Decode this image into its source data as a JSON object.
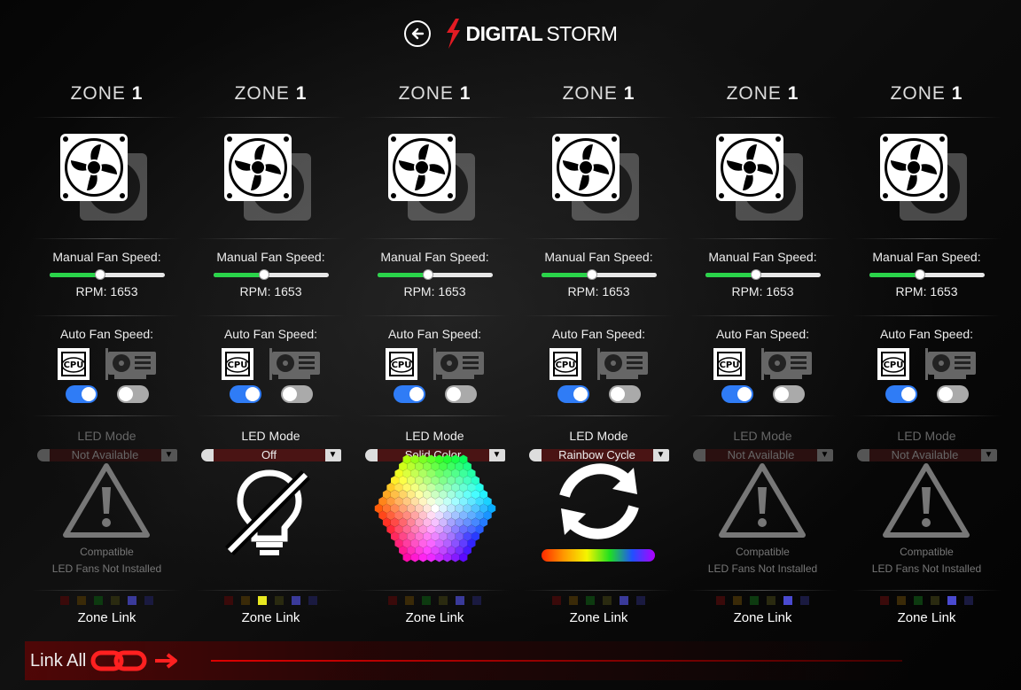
{
  "header": {
    "logo_part1": "DIGITAL",
    "logo_part2": "STORM"
  },
  "zones": [
    {
      "title": "ZONE",
      "num": "1",
      "manual_label": "Manual Fan Speed:",
      "rpm": "RPM: 1653",
      "speed_fraction": 0.44,
      "auto_label": "Auto Fan Speed:",
      "cpu_on": true,
      "gpu_on": false,
      "led_label": "LED Mode",
      "led_value": "Not Available",
      "led_enabled": false,
      "compat1": "Compatible",
      "compat2": "LED Fans Not Installed",
      "zone_link": "Zone Link"
    },
    {
      "title": "ZONE",
      "num": "1",
      "manual_label": "Manual Fan Speed:",
      "rpm": "RPM: 1653",
      "speed_fraction": 0.44,
      "auto_label": "Auto Fan Speed:",
      "cpu_on": true,
      "gpu_on": false,
      "led_label": "LED Mode",
      "led_value": "Off",
      "led_enabled": true,
      "compat1": "",
      "compat2": "",
      "zone_link": "Zone Link"
    },
    {
      "title": "ZONE",
      "num": "1",
      "manual_label": "Manual Fan Speed:",
      "rpm": "RPM: 1653",
      "speed_fraction": 0.44,
      "auto_label": "Auto Fan Speed:",
      "cpu_on": true,
      "gpu_on": false,
      "led_label": "LED Mode",
      "led_value": "Solid Color",
      "led_enabled": true,
      "compat1": "",
      "compat2": "",
      "zone_link": "Zone Link"
    },
    {
      "title": "ZONE",
      "num": "1",
      "manual_label": "Manual Fan Speed:",
      "rpm": "RPM: 1653",
      "speed_fraction": 0.44,
      "auto_label": "Auto Fan Speed:",
      "cpu_on": true,
      "gpu_on": false,
      "led_label": "LED Mode",
      "led_value": "Rainbow Cycle",
      "led_enabled": true,
      "compat1": "",
      "compat2": "",
      "zone_link": "Zone Link"
    },
    {
      "title": "ZONE",
      "num": "1",
      "manual_label": "Manual Fan Speed:",
      "rpm": "RPM: 1653",
      "speed_fraction": 0.44,
      "auto_label": "Auto Fan Speed:",
      "cpu_on": true,
      "gpu_on": false,
      "led_label": "LED Mode",
      "led_value": "Not Available",
      "led_enabled": false,
      "compat1": "Compatible",
      "compat2": "LED Fans Not Installed",
      "zone_link": "Zone Link"
    },
    {
      "title": "ZONE",
      "num": "1",
      "manual_label": "Manual Fan Speed:",
      "rpm": "RPM: 1653",
      "speed_fraction": 0.44,
      "auto_label": "Auto Fan Speed:",
      "cpu_on": true,
      "gpu_on": false,
      "led_label": "LED Mode",
      "led_value": "Not Available",
      "led_enabled": false,
      "compat1": "Compatible",
      "compat2": "LED Fans Not Installed",
      "zone_link": "Zone Link"
    }
  ],
  "swatch_colors": [
    [
      "#3a0a0a",
      "#3a2a08",
      "#0d3a10",
      "#2a2a10",
      "#3a3a9a",
      "#1a1a40"
    ],
    [
      "#3a0a0a",
      "#3a2a08",
      "#e8e820",
      "#2a2a10",
      "#3a3a9a",
      "#1a1a40"
    ],
    [
      "#3a0a0a",
      "#3a2a08",
      "#0d3a10",
      "#2a2a10",
      "#3a3a9a",
      "#1a1a40"
    ],
    [
      "#3a0a0a",
      "#3a2a08",
      "#0d3a10",
      "#2a2a10",
      "#3a3a9a",
      "#1a1a40"
    ],
    [
      "#3a0a0a",
      "#3a2a08",
      "#0d3a10",
      "#2a2a10",
      "#4a4ad0",
      "#1a1a40"
    ],
    [
      "#3a0a0a",
      "#3a2a08",
      "#0d3a10",
      "#2a2a10",
      "#4a4ad0",
      "#1a1a40"
    ]
  ],
  "link_all": {
    "label": "Link All"
  },
  "colors": {
    "accent_green": "#2ad44a",
    "toggle_blue": "#2f7cf6",
    "brand_red": "#e31b23"
  }
}
